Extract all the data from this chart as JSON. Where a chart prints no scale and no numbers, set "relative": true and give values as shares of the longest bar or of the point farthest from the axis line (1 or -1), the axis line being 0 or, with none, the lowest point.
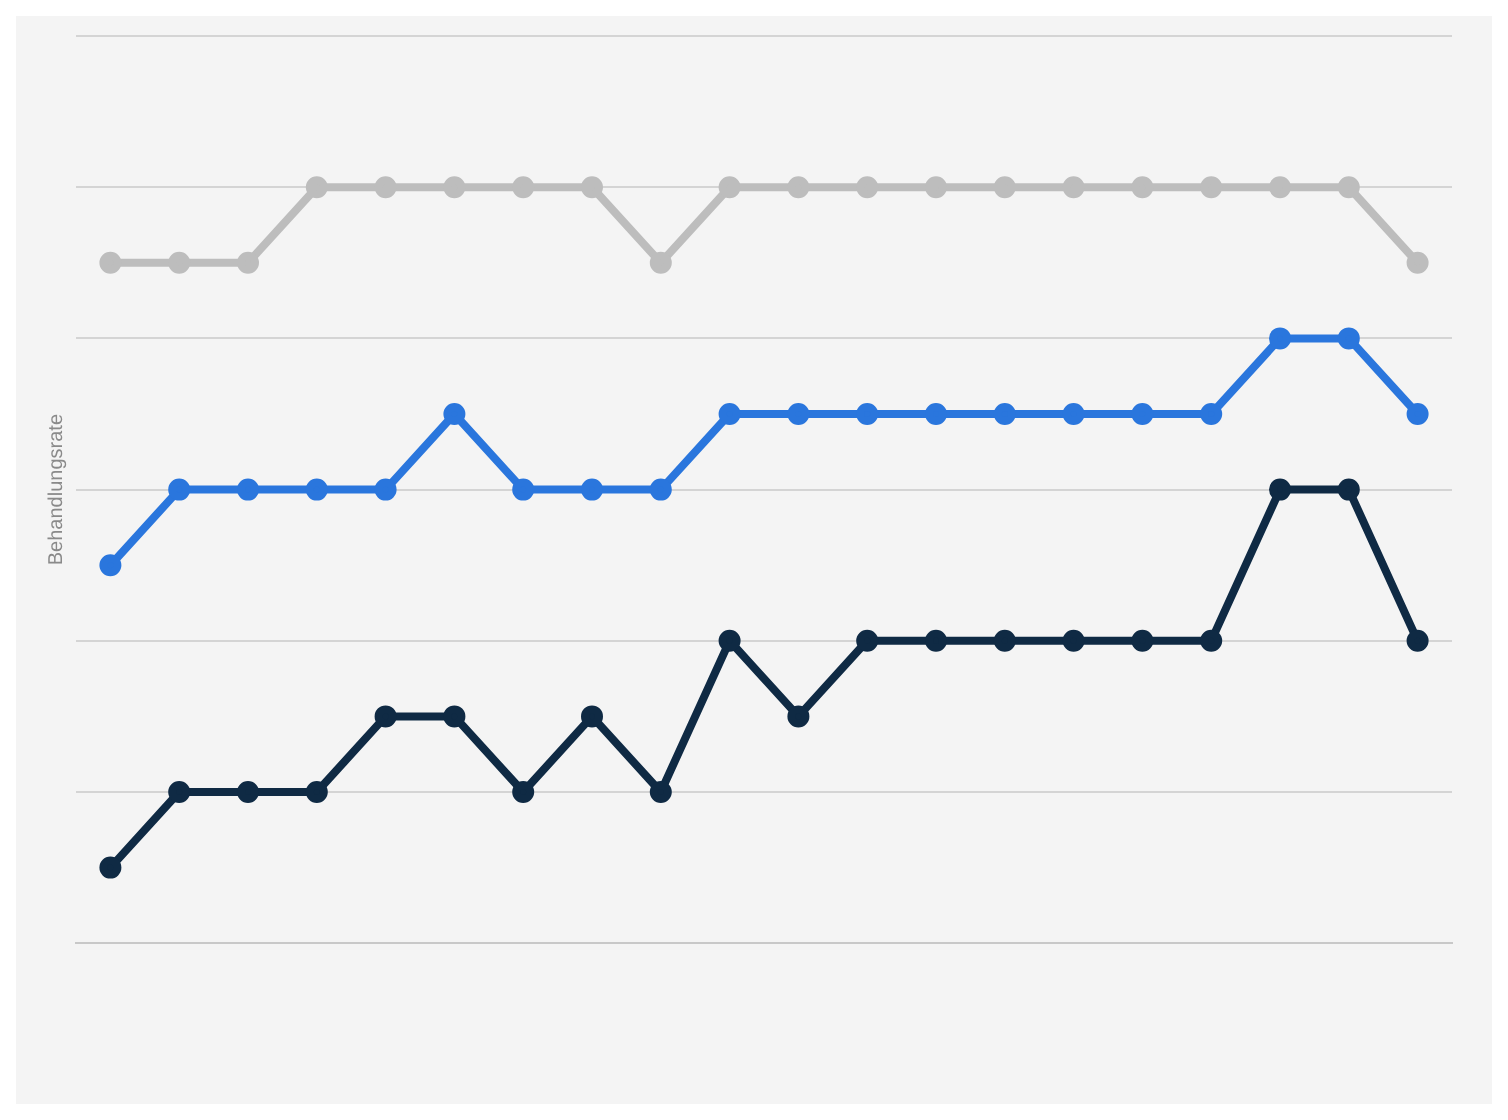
{
  "chart_data": {
    "type": "line",
    "ylabel": "Behandlungsrate",
    "relative": true,
    "grid": "y",
    "marker": "circle",
    "line_style": "solid",
    "legend": false,
    "categories": [
      null,
      null,
      null,
      null,
      null,
      null,
      null,
      null,
      null,
      null,
      null,
      null,
      null,
      null,
      null,
      null,
      null,
      null,
      null,
      null
    ],
    "series": [
      {
        "color": "#bdbdbd",
        "values": [
          0.9,
          0.9,
          0.9,
          1,
          1,
          1,
          1,
          1,
          0.9,
          1,
          1,
          1,
          1,
          1,
          1,
          1,
          1,
          1,
          1,
          0.9
        ]
      },
      {
        "color": "#2a76dd",
        "values": [
          0.5,
          0.6,
          0.6,
          0.6,
          0.6,
          0.7,
          0.6,
          0.6,
          0.6,
          0.7,
          0.7,
          0.7,
          0.7,
          0.7,
          0.7,
          0.7,
          0.7,
          0.8,
          0.8,
          0.7
        ]
      },
      {
        "color": "#0f2a44",
        "values": [
          0.1,
          0.2,
          0.2,
          0.2,
          0.3,
          0.3,
          0.2,
          0.3,
          0.2,
          0.4,
          0.3,
          0.4,
          0.4,
          0.4,
          0.4,
          0.4,
          0.4,
          0.6,
          0.6,
          0.4
        ]
      }
    ]
  }
}
